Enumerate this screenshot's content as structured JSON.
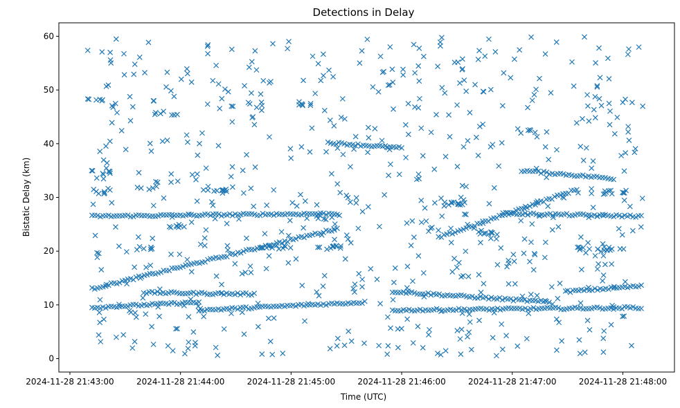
{
  "chart_data": {
    "type": "scatter",
    "title": "Detections in Delay",
    "xlabel": "Time (UTC)",
    "ylabel": "Bistatic Delay (km)",
    "marker": "x",
    "color": "#1f77b4",
    "grid": false,
    "x_axis": {
      "type": "datetime",
      "range": [
        "2024-11-28 21:42:54",
        "2024-11-28 21:48:28"
      ],
      "ticks": [
        "2024-11-28 21:43:00",
        "2024-11-28 21:44:00",
        "2024-11-28 21:45:00",
        "2024-11-28 21:46:00",
        "2024-11-28 21:47:00",
        "2024-11-28 21:48:00"
      ]
    },
    "y_axis": {
      "range": [
        -2.5,
        62.5
      ],
      "ticks": [
        0,
        10,
        20,
        30,
        40,
        50,
        60
      ]
    },
    "tracks": [
      {
        "start": "2024-11-28 21:43:12",
        "end": "2024-11-28 21:45:25",
        "delay_start": 13.0,
        "delay_end": 24.2
      },
      {
        "start": "2024-11-28 21:45:20",
        "end": "2024-11-28 21:46:00",
        "delay_start": 40.2,
        "delay_end": 39.2
      },
      {
        "start": "2024-11-28 21:46:20",
        "end": "2024-11-28 21:47:35",
        "delay_start": 22.5,
        "delay_end": 31.5
      },
      {
        "start": "2024-11-28 21:47:05",
        "end": "2024-11-28 21:47:55",
        "delay_start": 35.0,
        "delay_end": 33.5
      },
      {
        "start": "2024-11-28 21:43:12",
        "end": "2024-11-28 21:44:10",
        "delay_start": 9.5,
        "delay_end": 10.5
      },
      {
        "start": "2024-11-28 21:43:12",
        "end": "2024-11-28 21:45:25",
        "delay_start": 26.5,
        "delay_end": 27.0
      },
      {
        "start": "2024-11-28 21:43:40",
        "end": "2024-11-28 21:44:40",
        "delay_start": 12.3,
        "delay_end": 12.0
      },
      {
        "start": "2024-11-28 21:44:10",
        "end": "2024-11-28 21:45:40",
        "delay_start": 9.0,
        "delay_end": 10.5
      },
      {
        "start": "2024-11-28 21:45:55",
        "end": "2024-11-28 21:47:20",
        "delay_start": 12.5,
        "delay_end": 10.5
      },
      {
        "start": "2024-11-28 21:45:55",
        "end": "2024-11-28 21:48:10",
        "delay_start": 9.0,
        "delay_end": 9.5
      },
      {
        "start": "2024-11-28 21:46:55",
        "end": "2024-11-28 21:48:10",
        "delay_start": 27.0,
        "delay_end": 26.5
      },
      {
        "start": "2024-11-28 21:47:30",
        "end": "2024-11-28 21:48:10",
        "delay_start": 12.5,
        "delay_end": 13.5
      }
    ],
    "scatter_clusters": [
      {
        "center_time": "2024-11-28 21:43:15",
        "center_delay": 34.6,
        "count": 8
      },
      {
        "center_time": "2024-11-28 21:43:15",
        "center_delay": 48.3,
        "count": 6
      },
      {
        "center_time": "2024-11-28 21:43:20",
        "center_delay": 31.0,
        "count": 6
      },
      {
        "center_time": "2024-11-28 21:43:15",
        "center_delay": 57.1,
        "count": 3
      },
      {
        "center_time": "2024-11-28 21:43:52",
        "center_delay": 45.7,
        "count": 6
      },
      {
        "center_time": "2024-11-28 21:43:55",
        "center_delay": 24.8,
        "count": 8
      },
      {
        "center_time": "2024-11-28 21:44:20",
        "center_delay": 31.2,
        "count": 10
      },
      {
        "center_time": "2024-11-28 21:43:40",
        "center_delay": 20.5,
        "count": 7
      },
      {
        "center_time": "2024-11-28 21:44:50",
        "center_delay": 20.8,
        "count": 12
      },
      {
        "center_time": "2024-11-28 21:45:20",
        "center_delay": 20.7,
        "count": 10
      },
      {
        "center_time": "2024-11-28 21:46:30",
        "center_delay": 28.8,
        "count": 12
      },
      {
        "center_time": "2024-11-28 21:46:45",
        "center_delay": 23.5,
        "count": 10
      },
      {
        "center_time": "2024-11-28 21:47:40",
        "center_delay": 20.5,
        "count": 8
      },
      {
        "center_time": "2024-11-28 21:47:55",
        "center_delay": 31.0,
        "count": 10
      },
      {
        "center_time": "2024-11-28 21:47:55",
        "center_delay": 20.5,
        "count": 8
      },
      {
        "center_time": "2024-11-28 21:47:15",
        "center_delay": 42.3,
        "count": 5
      },
      {
        "center_time": "2024-11-28 21:45:05",
        "center_delay": 47.5,
        "count": 6
      }
    ],
    "background_noise_count": 650
  }
}
